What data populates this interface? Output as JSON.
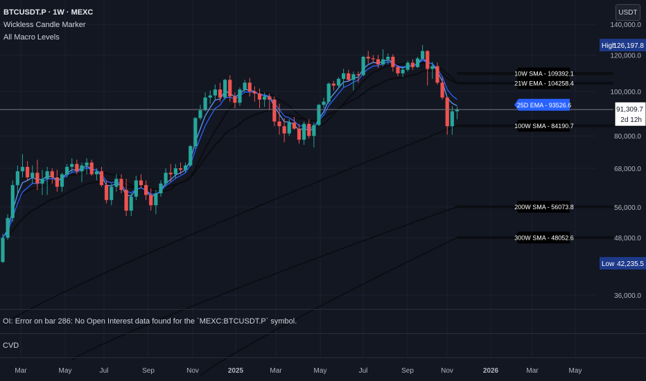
{
  "header": {
    "symbol": "BTCUSDT.P · 1W · MEXC",
    "indicator_1": "Wickless Candle Marker",
    "indicator_2": "All Macro Levels",
    "currency": "USDT"
  },
  "oi_pane": {
    "error_text": "OI: Error on bar 286: No Open Interest data found for the `MEXC:BTCUSDT.P` symbol."
  },
  "cvd_pane": {
    "label": "CVD"
  },
  "colors": {
    "background": "#131722",
    "grid": "#1e2230",
    "bull": "#26a69a",
    "bear": "#ef5350",
    "ma_blue": "#2962ff",
    "ma_blue_light": "#5b9cf6",
    "ma_dark": "#0b0d12",
    "ema25_tag": "#2962ff",
    "hilo_tag": "#1e3a8a"
  },
  "chart_data": {
    "type": "candlestick",
    "symbol": "BTCUSDT.P",
    "timeframe": "1W",
    "exchange": "MEXC",
    "x_axis_labels": [
      "Mar",
      "May",
      "Jul",
      "Sep",
      "Nov",
      "2025",
      "Mar",
      "May",
      "Jul",
      "Sep",
      "Nov",
      "2026",
      "Mar",
      "May"
    ],
    "y_axis_ticks": [
      "36,000.0",
      "48,000.0",
      "56,000.0",
      "68,000.0",
      "80,000.0",
      "100,000.0",
      "120,000.0",
      "140,000.0"
    ],
    "y_scale": "log",
    "y_range": [
      32000,
      150000
    ],
    "current_price": "91,309.7",
    "countdown": "2d 12h",
    "high": {
      "label": "High",
      "value": "126,197.8"
    },
    "low": {
      "label": "Low",
      "value": "42,235.5"
    },
    "macro_levels": [
      {
        "label": "10W SMA - 109392.1",
        "value": 109392.1
      },
      {
        "label": "21W EMA - 104258.4",
        "value": 104258.4
      },
      {
        "label": "25D EMA - 93526.6",
        "value": 93526.6
      },
      {
        "label": "100W SMA - 84190.7",
        "value": 84190.7
      },
      {
        "label": "200W SMA - 56073.8",
        "value": 56073.8
      },
      {
        "label": "300W SMA - 48052.6",
        "value": 48052.6
      }
    ],
    "candles_ohlc": [
      [
        42500,
        49000,
        42300,
        48000
      ],
      [
        48000,
        54000,
        47500,
        53000
      ],
      [
        53000,
        64000,
        52000,
        62500
      ],
      [
        62500,
        69000,
        60000,
        67000
      ],
      [
        67000,
        73000,
        65000,
        68500
      ],
      [
        68500,
        70500,
        64000,
        65000
      ],
      [
        65000,
        69000,
        63000,
        66500
      ],
      [
        66500,
        71000,
        61000,
        63000
      ],
      [
        63000,
        67500,
        59500,
        64500
      ],
      [
        64500,
        68500,
        59500,
        67000
      ],
      [
        67000,
        68000,
        63000,
        65000
      ],
      [
        65000,
        67500,
        60500,
        62000
      ],
      [
        62000,
        66500,
        60500,
        66000
      ],
      [
        66000,
        69500,
        65000,
        68500
      ],
      [
        68500,
        71500,
        66500,
        69500
      ],
      [
        69500,
        71000,
        66000,
        67000
      ],
      [
        67000,
        70000,
        63500,
        69000
      ],
      [
        69000,
        71500,
        66000,
        70000
      ],
      [
        70000,
        71000,
        65500,
        66000
      ],
      [
        66000,
        68000,
        64000,
        67000
      ],
      [
        67000,
        68500,
        62000,
        62500
      ],
      [
        62500,
        64000,
        57000,
        58000
      ],
      [
        58000,
        63000,
        56500,
        62000
      ],
      [
        62000,
        66000,
        60500,
        64500
      ],
      [
        64500,
        66000,
        60000,
        61000
      ],
      [
        61000,
        64500,
        53500,
        55000
      ],
      [
        55000,
        60000,
        53500,
        59000
      ],
      [
        59000,
        65500,
        58000,
        64000
      ],
      [
        64000,
        66000,
        61500,
        62500
      ],
      [
        62500,
        64000,
        58000,
        59500
      ],
      [
        59500,
        61500,
        55000,
        56500
      ],
      [
        56500,
        61000,
        54000,
        60000
      ],
      [
        60000,
        64000,
        59000,
        63000
      ],
      [
        63000,
        68000,
        62000,
        66500
      ],
      [
        66500,
        69500,
        63500,
        66000
      ],
      [
        66000,
        69500,
        64500,
        68000
      ],
      [
        68000,
        70000,
        66000,
        67500
      ],
      [
        67500,
        70000,
        66500,
        69000
      ],
      [
        69000,
        76500,
        68500,
        76000
      ],
      [
        76000,
        88000,
        75000,
        87500
      ],
      [
        87500,
        93500,
        86500,
        91000
      ],
      [
        91000,
        99500,
        90500,
        97000
      ],
      [
        97000,
        100500,
        94000,
        98000
      ],
      [
        98000,
        103500,
        96000,
        101000
      ],
      [
        101000,
        104500,
        95000,
        97000
      ],
      [
        97000,
        106500,
        96000,
        106000
      ],
      [
        106000,
        108500,
        95000,
        97500
      ],
      [
        97500,
        99500,
        92000,
        94500
      ],
      [
        94500,
        102000,
        93000,
        101000
      ],
      [
        101000,
        106000,
        99500,
        104500
      ],
      [
        104500,
        107000,
        97500,
        100000
      ],
      [
        100000,
        102500,
        95000,
        99000
      ],
      [
        99000,
        101500,
        92000,
        96000
      ],
      [
        96000,
        99500,
        92500,
        97500
      ],
      [
        97500,
        99000,
        91000,
        96000
      ],
      [
        96000,
        97500,
        84000,
        86000
      ],
      [
        86000,
        94000,
        80500,
        84000
      ],
      [
        84000,
        87500,
        77500,
        81000
      ],
      [
        81000,
        87000,
        80000,
        85500
      ],
      [
        85500,
        88000,
        82500,
        83000
      ],
      [
        83000,
        85000,
        77000,
        78500
      ],
      [
        78500,
        86000,
        76500,
        85000
      ],
      [
        85000,
        87000,
        79000,
        80000
      ],
      [
        80000,
        85500,
        75500,
        84500
      ],
      [
        84500,
        94000,
        84000,
        93500
      ],
      [
        93500,
        97000,
        92000,
        95000
      ],
      [
        95000,
        104500,
        94000,
        104000
      ],
      [
        104000,
        105500,
        100500,
        103000
      ],
      [
        103000,
        107500,
        101500,
        106500
      ],
      [
        106500,
        112000,
        102000,
        109500
      ],
      [
        109500,
        111500,
        105000,
        106000
      ],
      [
        106000,
        110500,
        100500,
        109000
      ],
      [
        109000,
        110500,
        104500,
        108500
      ],
      [
        108500,
        119500,
        108000,
        119000
      ],
      [
        119000,
        122500,
        115000,
        118000
      ],
      [
        118000,
        120000,
        115500,
        117500
      ],
      [
        117500,
        120000,
        112500,
        114500
      ],
      [
        114500,
        123500,
        113500,
        117500
      ],
      [
        117500,
        121000,
        114500,
        119000
      ],
      [
        119000,
        120500,
        110500,
        113000
      ],
      [
        113000,
        114000,
        108000,
        109500
      ],
      [
        109500,
        113500,
        107500,
        111500
      ],
      [
        111500,
        116500,
        110500,
        115500
      ],
      [
        115500,
        117500,
        111500,
        113000
      ],
      [
        113000,
        119000,
        112500,
        118000
      ],
      [
        118000,
        126197.8,
        117500,
        122500
      ],
      [
        122500,
        123000,
        103000,
        112000
      ],
      [
        112000,
        116000,
        106500,
        113500
      ],
      [
        113500,
        115500,
        103500,
        104500
      ],
      [
        104500,
        107500,
        96000,
        97000
      ],
      [
        97000,
        97500,
        80500,
        84000
      ],
      [
        84000,
        93000,
        80500,
        90500
      ],
      [
        90500,
        92500,
        87000,
        91309.7
      ]
    ]
  }
}
